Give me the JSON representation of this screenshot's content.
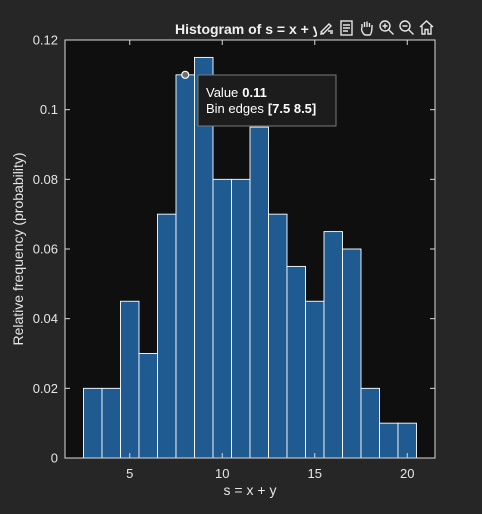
{
  "chart_data": {
    "type": "bar",
    "title": "Histogram of s = x + y",
    "xlabel": "s = x + y",
    "ylabel": "Relative frequency (probability)",
    "xlim": [
      1.5,
      21.5
    ],
    "ylim": [
      0,
      0.12
    ],
    "xticks": [
      5,
      10,
      15,
      20
    ],
    "yticks": [
      0,
      0.02,
      0.04,
      0.06,
      0.08,
      0.1,
      0.12
    ],
    "bin_edges": [
      2.5,
      3.5,
      4.5,
      5.5,
      6.5,
      7.5,
      8.5,
      9.5,
      10.5,
      11.5,
      12.5,
      13.5,
      14.5,
      15.5,
      16.5,
      17.5,
      18.5,
      19.5,
      20.5
    ],
    "values": [
      0.02,
      0.02,
      0.045,
      0.03,
      0.07,
      0.11,
      0.115,
      0.08,
      0.08,
      0.095,
      0.07,
      0.055,
      0.045,
      0.065,
      0.06,
      0.02,
      0.01,
      0.01
    ],
    "grid": false,
    "colors": {
      "face": "#1f5a91",
      "edge": "#ffffff",
      "axes_bg": "#0f0f0f",
      "figure_bg": "#262626"
    }
  },
  "datatip": {
    "value_label": "Value",
    "value": "0.11",
    "edges_label": "Bin edges",
    "edges": "[7.5 8.5]",
    "bin_index": 5
  },
  "toolbar": {
    "icons": [
      "brush-icon",
      "datatip-icon",
      "pan-icon",
      "zoom-in-icon",
      "zoom-out-icon",
      "home-icon"
    ]
  }
}
